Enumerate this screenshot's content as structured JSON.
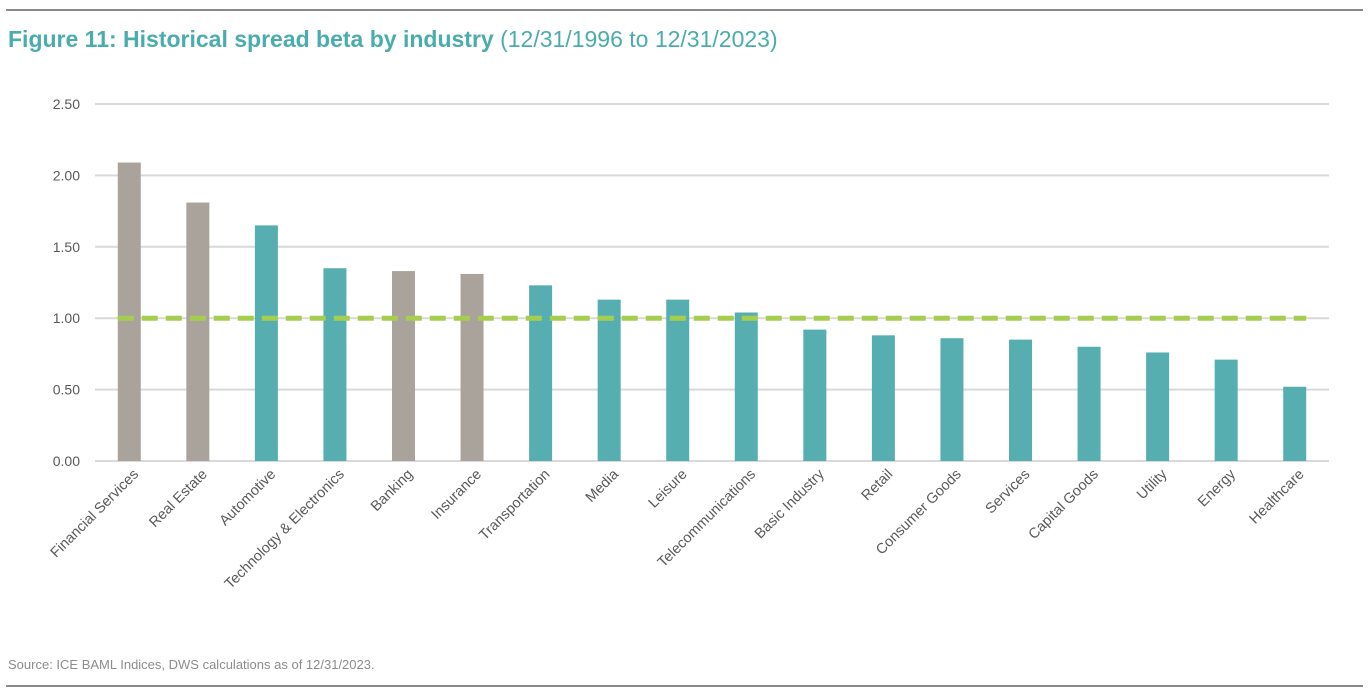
{
  "title": "Figure 11: Historical spread beta by industry",
  "subtitle": "(12/31/1996 to 12/31/2023)",
  "source": "Source: ICE BAML Indices, DWS calculations as of 12/31/2023.",
  "colors": {
    "title": "#4bacad",
    "teal_bar": "#56aeb0",
    "grey_bar": "#aaa39b",
    "reference_line": "#a6ce4e",
    "grid": "#d9d9d9",
    "axis_text": "#595959"
  },
  "chart_data": {
    "type": "bar",
    "categories": [
      "Financial Services",
      "Real Estate",
      "Automotive",
      "Technology & Electronics",
      "Banking",
      "Insurance",
      "Transportation",
      "Media",
      "Leisure",
      "Telecommunications",
      "Basic Industry",
      "Retail",
      "Consumer Goods",
      "Services",
      "Capital Goods",
      "Utility",
      "Energy",
      "Healthcare"
    ],
    "values": [
      2.09,
      1.81,
      1.65,
      1.35,
      1.33,
      1.31,
      1.23,
      1.13,
      1.13,
      1.04,
      0.92,
      0.88,
      0.86,
      0.85,
      0.8,
      0.76,
      0.71,
      0.52
    ],
    "bar_colors": [
      "grey",
      "grey",
      "teal",
      "teal",
      "grey",
      "grey",
      "teal",
      "teal",
      "teal",
      "teal",
      "teal",
      "teal",
      "teal",
      "teal",
      "teal",
      "teal",
      "teal",
      "teal"
    ],
    "reference_line": {
      "value": 1.0,
      "style": "dashed"
    },
    "yticks": [
      "0.00",
      "0.50",
      "1.00",
      "1.50",
      "2.00",
      "2.50"
    ],
    "ylim": [
      0,
      2.5
    ],
    "grid": true,
    "legend": "none",
    "xlabel": "",
    "ylabel": ""
  }
}
